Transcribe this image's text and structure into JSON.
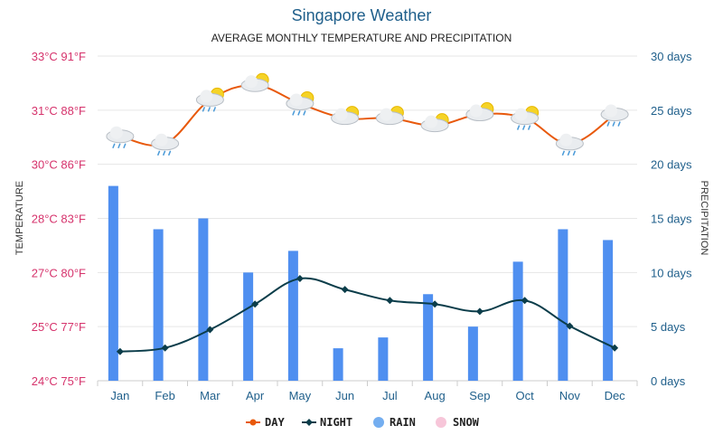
{
  "chart_data": {
    "type": "bar+line",
    "title": "Singapore Weather",
    "subtitle": "AVERAGE MONTHLY TEMPERATURE AND PRECIPITATION",
    "ylabel_left": "TEMPERATURE",
    "ylabel_right": "PRECIPITATION",
    "categories": [
      "Jan",
      "Feb",
      "Mar",
      "Apr",
      "May",
      "Jun",
      "Jul",
      "Aug",
      "Sep",
      "Oct",
      "Nov",
      "Dec"
    ],
    "left_ticks": [
      "24°C 75°F",
      "25°C 77°F",
      "27°C 80°F",
      "28°C 83°F",
      "30°C 86°F",
      "31°C 88°F",
      "33°C 91°F"
    ],
    "right_ticks": [
      "0 days",
      "5 days",
      "10 days",
      "15 days",
      "20 days",
      "25 days",
      "30 days"
    ],
    "temp_ylim_c": [
      23.9,
      32.8
    ],
    "precip_ylim": [
      0,
      30
    ],
    "grid": true,
    "legend_position": "bottom",
    "series": [
      {
        "name": "DAY",
        "type": "line",
        "axis": "temperature",
        "unit": "°C",
        "color": "#e8590c",
        "values": [
          30.6,
          30.4,
          31.6,
          32.0,
          31.5,
          31.1,
          31.1,
          30.9,
          31.2,
          31.1,
          30.4,
          31.2
        ],
        "icons": [
          "rain-cloud",
          "rain-cloud",
          "sun-rain-cloud",
          "sun-cloud",
          "sun-rain-cloud",
          "sun-cloud",
          "sun-cloud",
          "sun-cloud",
          "sun-cloud",
          "sun-rain-cloud",
          "rain-cloud",
          "rain-cloud"
        ]
      },
      {
        "name": "NIGHT",
        "type": "line",
        "axis": "temperature",
        "unit": "°C",
        "color": "#0b3d4a",
        "values": [
          24.7,
          24.8,
          25.3,
          26.0,
          26.7,
          26.4,
          26.1,
          26.0,
          25.8,
          26.1,
          25.4,
          24.8
        ]
      },
      {
        "name": "RAIN",
        "type": "bar",
        "axis": "precipitation",
        "unit": "days",
        "color": "#4f8ff0",
        "values": [
          18,
          14,
          15,
          10,
          12,
          3,
          4,
          8,
          5,
          11,
          14,
          13
        ]
      },
      {
        "name": "SNOW",
        "type": "bar",
        "axis": "precipitation",
        "unit": "days",
        "color": "#f7c6d9",
        "values": [
          0,
          0,
          0,
          0,
          0,
          0,
          0,
          0,
          0,
          0,
          0,
          0
        ]
      }
    ]
  }
}
